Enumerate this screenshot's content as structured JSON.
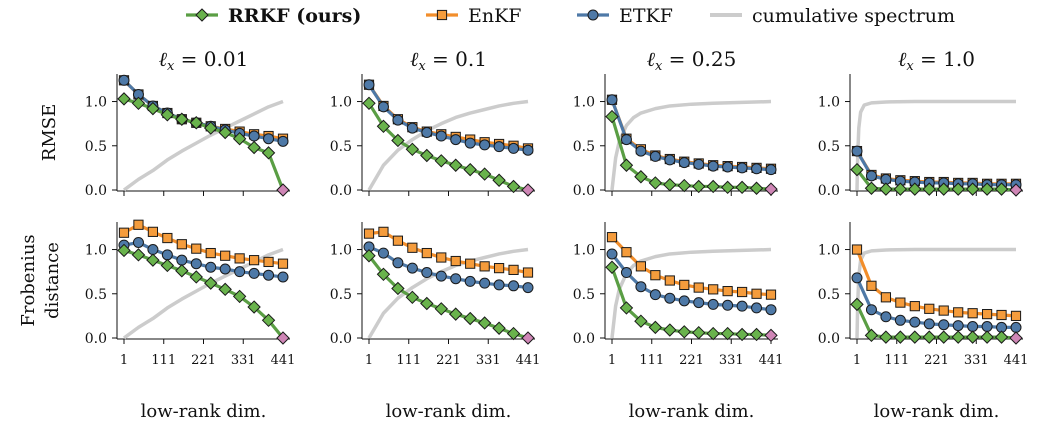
{
  "legend": [
    {
      "label": "RRKF (ours)",
      "color": "#5a9e44",
      "marker": "diamond",
      "bold": true
    },
    {
      "label": "EnKF",
      "color": "#f28e2b",
      "marker": "square",
      "bold": false
    },
    {
      "label": "ETKF",
      "color": "#4e79a7",
      "marker": "circle",
      "bold": false
    },
    {
      "label": "cumulative spectrum",
      "color": "#cccccc",
      "marker": "none",
      "bold": false
    }
  ],
  "panel_titles": [
    "ℓx = 0.01",
    "ℓx = 0.1",
    "ℓx = 0.25",
    "ℓx = 1.0"
  ],
  "title_parts": [
    {
      "sym": "ℓ",
      "sub": "x",
      "rest": " = 0.01"
    },
    {
      "sym": "ℓ",
      "sub": "x",
      "rest": " = 0.1"
    },
    {
      "sym": "ℓ",
      "sub": "x",
      "rest": " = 0.25"
    },
    {
      "sym": "ℓ",
      "sub": "x",
      "rest": " = 1.0"
    }
  ],
  "row_labels": [
    [
      "RMSE"
    ],
    [
      "Frobenius",
      "distance"
    ]
  ],
  "xlabel": "low-rank dim.",
  "x_ticks": [
    1,
    111,
    221,
    331,
    441
  ],
  "y_ticks": [
    "0.0",
    "0.5",
    "1.0"
  ],
  "chart_data": {
    "type": "line",
    "x": [
      1,
      41,
      81,
      121,
      161,
      201,
      241,
      281,
      321,
      361,
      401,
      441
    ],
    "xlim": [
      1,
      441
    ],
    "ylim": [
      0,
      1.3
    ],
    "rows": [
      "RMSE",
      "Frobenius distance"
    ],
    "cols": [
      "ℓx = 0.01",
      "ℓx = 0.1",
      "ℓx = 0.25",
      "ℓx = 1.0"
    ],
    "panels": [
      [
        {
          "RRKF": [
            1.03,
            0.98,
            0.92,
            0.85,
            0.8,
            0.76,
            0.7,
            0.65,
            0.58,
            0.48,
            0.42,
            0.0
          ],
          "EnKF": [
            1.24,
            1.08,
            0.95,
            0.87,
            0.8,
            0.76,
            0.72,
            0.69,
            0.66,
            0.63,
            0.61,
            0.58
          ],
          "ETKF": [
            1.24,
            1.08,
            0.95,
            0.87,
            0.8,
            0.76,
            0.72,
            0.68,
            0.64,
            0.61,
            0.58,
            0.55
          ],
          "spectrum": "slow"
        },
        {
          "RRKF": [
            0.98,
            0.72,
            0.56,
            0.46,
            0.39,
            0.33,
            0.28,
            0.23,
            0.18,
            0.11,
            0.04,
            0.0
          ],
          "EnKF": [
            1.19,
            0.95,
            0.8,
            0.71,
            0.66,
            0.63,
            0.6,
            0.57,
            0.54,
            0.52,
            0.5,
            0.47
          ],
          "ETKF": [
            1.19,
            0.94,
            0.79,
            0.7,
            0.65,
            0.61,
            0.57,
            0.53,
            0.51,
            0.49,
            0.47,
            0.45
          ],
          "spectrum": "medium"
        },
        {
          "RRKF": [
            0.83,
            0.28,
            0.15,
            0.08,
            0.06,
            0.05,
            0.04,
            0.04,
            0.03,
            0.03,
            0.02,
            0.01
          ],
          "EnKF": [
            1.02,
            0.58,
            0.46,
            0.39,
            0.35,
            0.32,
            0.3,
            0.28,
            0.27,
            0.26,
            0.25,
            0.24
          ],
          "ETKF": [
            1.02,
            0.57,
            0.44,
            0.38,
            0.34,
            0.31,
            0.29,
            0.27,
            0.26,
            0.25,
            0.24,
            0.23
          ],
          "spectrum": "fast"
        },
        {
          "RRKF": [
            0.23,
            0.02,
            0.01,
            0.01,
            0.01,
            0.01,
            0.01,
            0.01,
            0.01,
            0.01,
            0.01,
            0.0
          ],
          "EnKF": [
            0.44,
            0.17,
            0.13,
            0.11,
            0.1,
            0.09,
            0.09,
            0.08,
            0.08,
            0.07,
            0.07,
            0.07
          ],
          "ETKF": [
            0.44,
            0.16,
            0.12,
            0.1,
            0.09,
            0.08,
            0.08,
            0.07,
            0.07,
            0.06,
            0.06,
            0.06
          ],
          "spectrum": "veryfast"
        }
      ],
      [
        {
          "RRKF": [
            0.99,
            0.94,
            0.88,
            0.82,
            0.76,
            0.69,
            0.62,
            0.55,
            0.47,
            0.35,
            0.2,
            0.0
          ],
          "EnKF": [
            1.19,
            1.28,
            1.2,
            1.13,
            1.06,
            1.01,
            0.96,
            0.93,
            0.9,
            0.88,
            0.86,
            0.84
          ],
          "ETKF": [
            1.05,
            1.08,
            1.0,
            0.94,
            0.88,
            0.84,
            0.8,
            0.78,
            0.75,
            0.73,
            0.71,
            0.69
          ],
          "spectrum": "slow"
        },
        {
          "RRKF": [
            0.93,
            0.72,
            0.56,
            0.46,
            0.39,
            0.33,
            0.27,
            0.22,
            0.17,
            0.11,
            0.05,
            0.0
          ],
          "EnKF": [
            1.18,
            1.2,
            1.1,
            1.02,
            0.96,
            0.91,
            0.87,
            0.84,
            0.81,
            0.79,
            0.77,
            0.74
          ],
          "ETKF": [
            1.03,
            0.96,
            0.85,
            0.79,
            0.74,
            0.7,
            0.67,
            0.64,
            0.62,
            0.6,
            0.59,
            0.57
          ],
          "spectrum": "medium"
        },
        {
          "RRKF": [
            0.8,
            0.34,
            0.19,
            0.12,
            0.09,
            0.07,
            0.06,
            0.05,
            0.05,
            0.04,
            0.04,
            0.03
          ],
          "EnKF": [
            1.14,
            0.97,
            0.81,
            0.71,
            0.65,
            0.6,
            0.57,
            0.55,
            0.53,
            0.52,
            0.5,
            0.49
          ],
          "ETKF": [
            0.95,
            0.74,
            0.58,
            0.49,
            0.45,
            0.42,
            0.4,
            0.38,
            0.37,
            0.36,
            0.34,
            0.32
          ],
          "spectrum": "fast"
        },
        {
          "RRKF": [
            0.38,
            0.03,
            0.01,
            0.01,
            0.01,
            0.01,
            0.01,
            0.01,
            0.01,
            0.01,
            0.01,
            0.0
          ],
          "EnKF": [
            1.0,
            0.59,
            0.46,
            0.4,
            0.36,
            0.33,
            0.31,
            0.29,
            0.28,
            0.27,
            0.26,
            0.25
          ],
          "ETKF": [
            0.68,
            0.32,
            0.24,
            0.2,
            0.18,
            0.16,
            0.15,
            0.14,
            0.13,
            0.13,
            0.12,
            0.12
          ],
          "spectrum": "veryfast"
        }
      ]
    ],
    "spectrum_curves": {
      "slow": {
        "x": [
          1,
          41,
          81,
          121,
          161,
          201,
          241,
          281,
          321,
          361,
          401,
          441
        ],
        "y": [
          0.0,
          0.12,
          0.22,
          0.34,
          0.44,
          0.53,
          0.62,
          0.7,
          0.78,
          0.86,
          0.94,
          1.0
        ]
      },
      "medium": {
        "x": [
          1,
          41,
          81,
          121,
          161,
          201,
          241,
          281,
          321,
          361,
          401,
          441
        ],
        "y": [
          0.0,
          0.28,
          0.45,
          0.57,
          0.67,
          0.75,
          0.82,
          0.87,
          0.91,
          0.95,
          0.98,
          1.0
        ]
      },
      "fast": {
        "x": [
          1,
          11,
          21,
          41,
          61,
          81,
          121,
          161,
          221,
          281,
          361,
          441
        ],
        "y": [
          0.0,
          0.36,
          0.55,
          0.73,
          0.82,
          0.87,
          0.92,
          0.95,
          0.97,
          0.98,
          0.99,
          1.0
        ]
      },
      "veryfast": {
        "x": [
          1,
          3,
          6,
          11,
          21,
          41,
          81,
          161,
          241,
          321,
          401,
          441
        ],
        "y": [
          0.0,
          0.4,
          0.7,
          0.88,
          0.96,
          0.985,
          0.995,
          1.0,
          1.0,
          1.0,
          1.0,
          1.0
        ]
      }
    },
    "colors": {
      "RRKF": "#5a9e44",
      "EnKF": "#f28e2b",
      "ETKF": "#4e79a7",
      "spectrum": "#cccccc",
      "RRKF_marker": "#69b34c",
      "EnKF_marker": "#f59c3c",
      "ETKF_marker": "#4e79a7",
      "last_marker": "#cf86b6"
    },
    "grid": false,
    "legend_position": "top-center"
  }
}
